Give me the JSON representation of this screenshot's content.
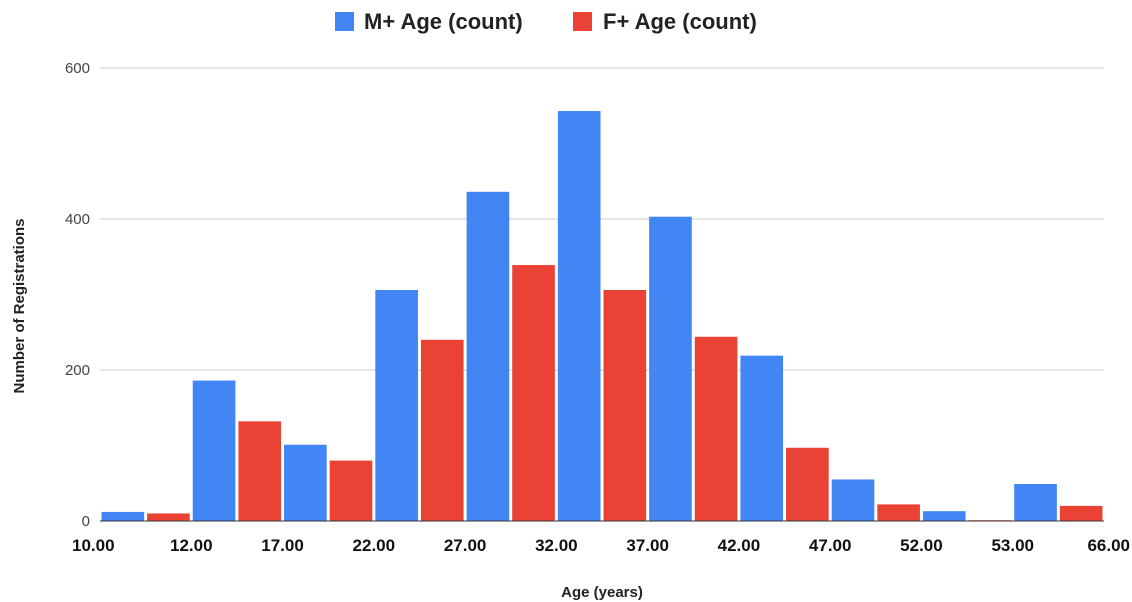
{
  "chart_data": {
    "type": "bar",
    "title": "",
    "xlabel": "Age (years)",
    "ylabel": "Number of Registrations",
    "ylim": [
      0,
      600
    ],
    "yticks": [
      0,
      200,
      400,
      600
    ],
    "xtick_labels": [
      "10.00",
      "12.00",
      "17.00",
      "22.00",
      "27.00",
      "32.00",
      "37.00",
      "42.00",
      "47.00",
      "52.00",
      "53.00",
      "66.00"
    ],
    "grid": true,
    "legend_position": "top",
    "bar_order": [
      "M+",
      "F+",
      "M+",
      "F+",
      "M+",
      "F+",
      "M+",
      "F+",
      "M+",
      "F+",
      "M+",
      "F+",
      "M+",
      "F+",
      "M+",
      "F+",
      "M+",
      "F+",
      "M+",
      "F+",
      "M+",
      "F+"
    ],
    "bar_values": [
      12,
      10,
      186,
      132,
      101,
      80,
      306,
      240,
      436,
      339,
      543,
      306,
      403,
      244,
      219,
      97,
      55,
      22,
      13,
      1,
      49,
      20
    ],
    "series": [
      {
        "name": "M+ Age (count)",
        "color": "#4285f4",
        "values": [
          12,
          186,
          101,
          306,
          436,
          543,
          403,
          219,
          55,
          13,
          49
        ]
      },
      {
        "name": "F+ Age (count)",
        "color": "#ea4335",
        "values": [
          10,
          132,
          80,
          240,
          339,
          306,
          244,
          97,
          22,
          1,
          20
        ]
      }
    ]
  }
}
